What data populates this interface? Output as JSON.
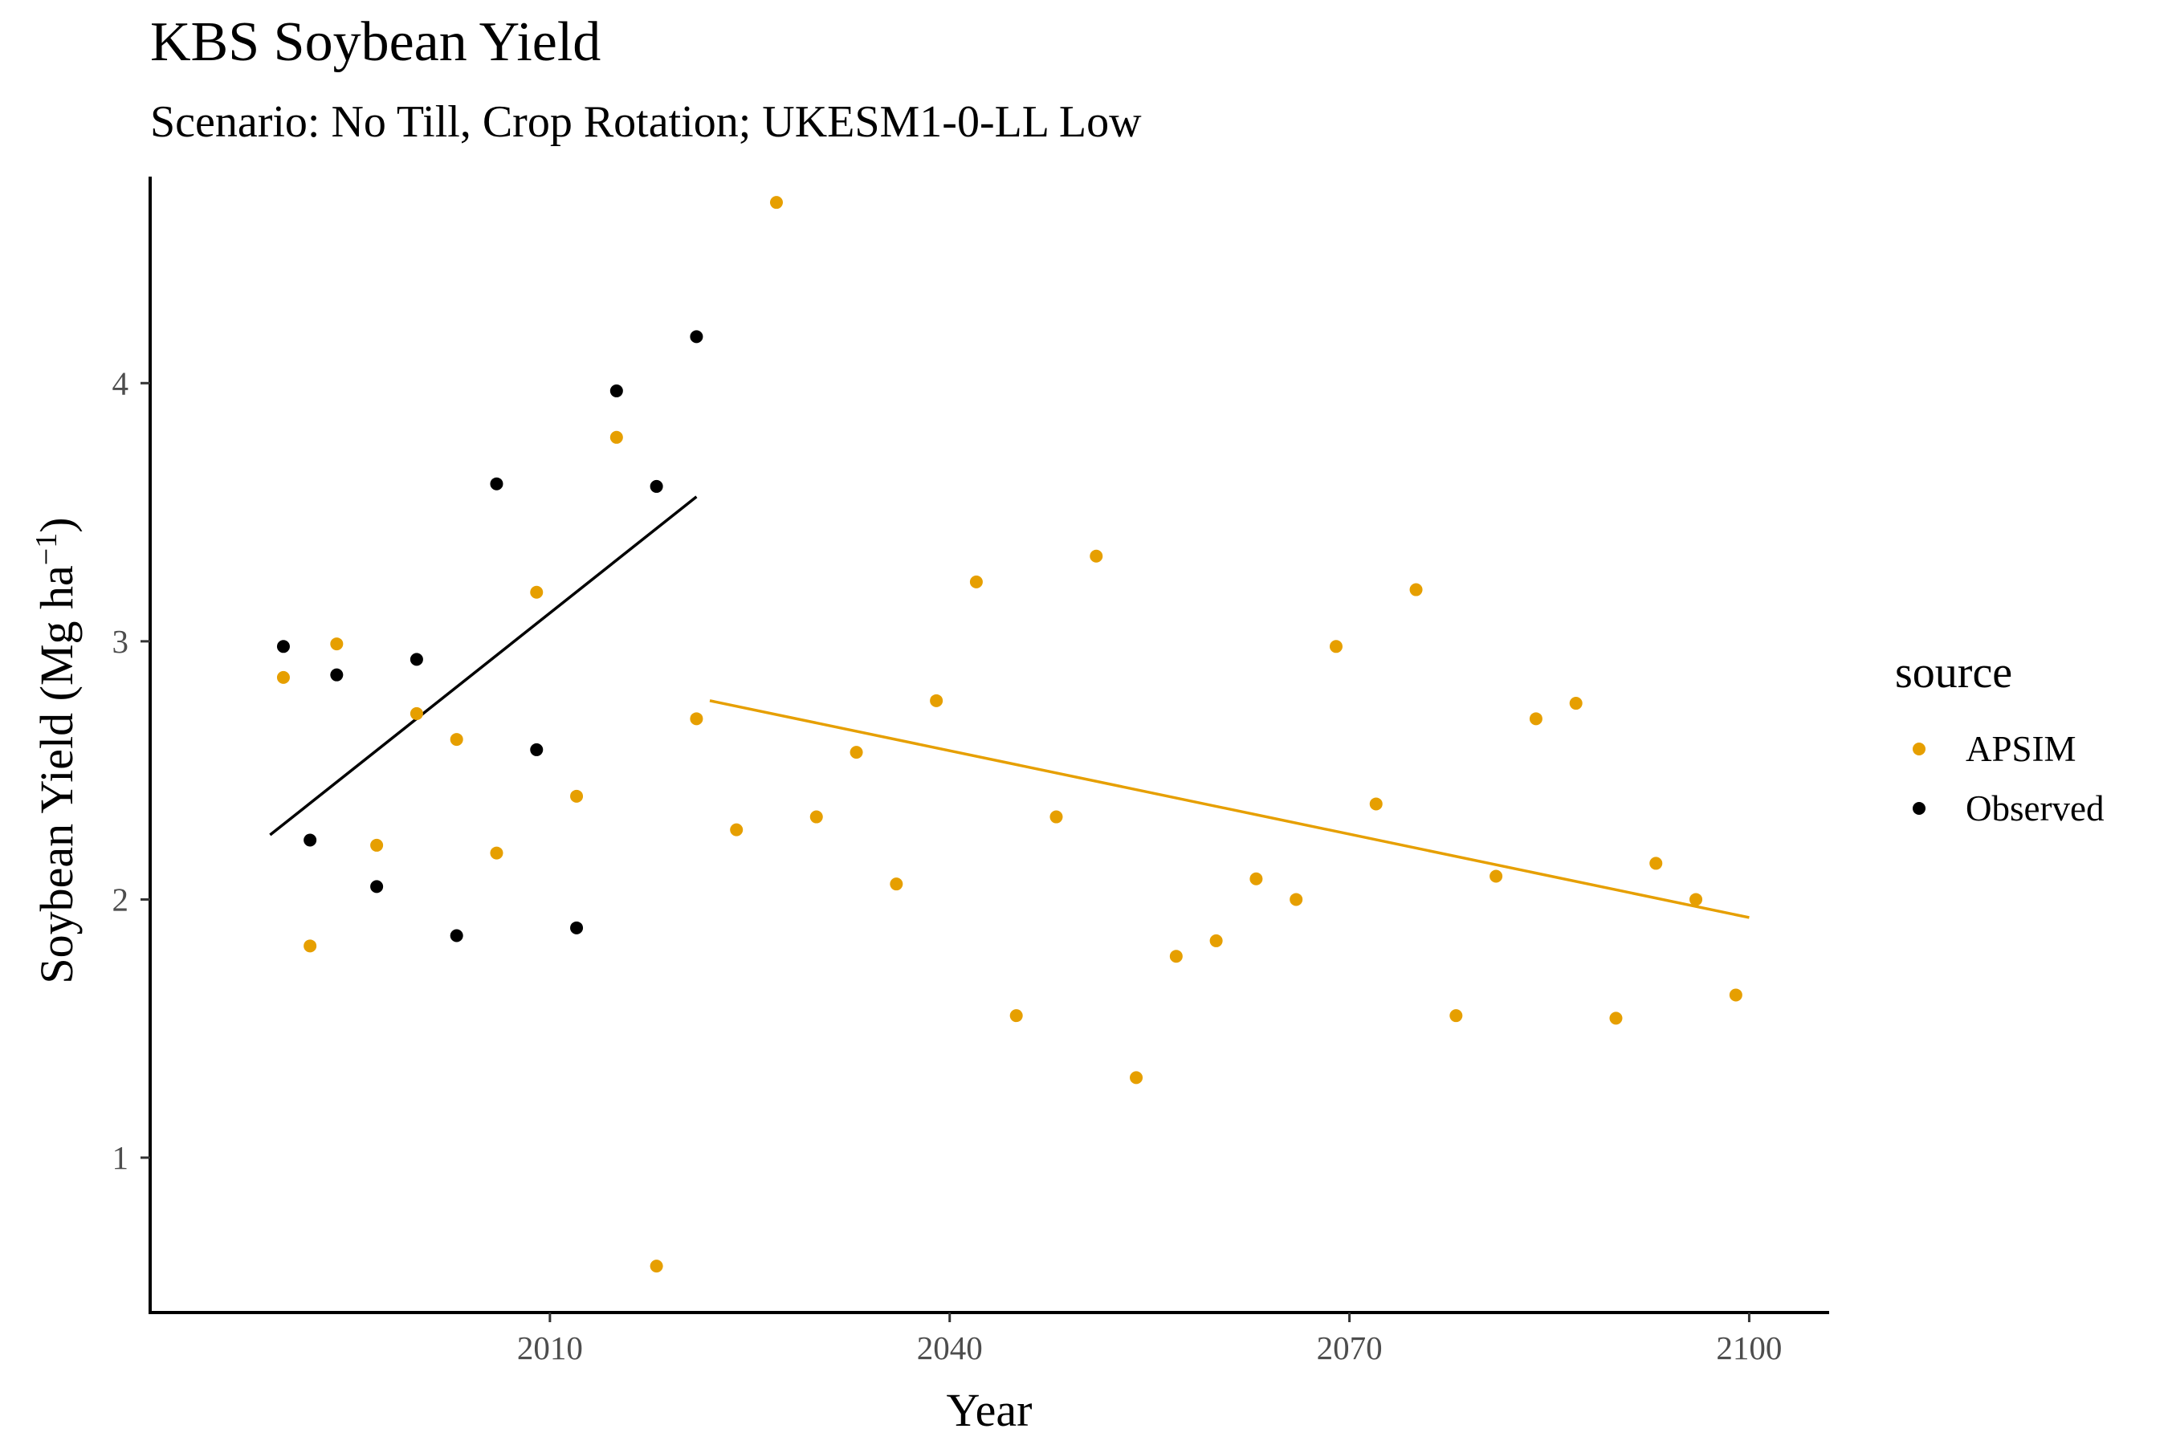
{
  "chart_data": {
    "type": "scatter",
    "title": "KBS Soybean Yield",
    "subtitle": "Scenario: No Till, Crop Rotation; UKESM1-0-LL Low",
    "xlabel": "Year",
    "ylabel": "Soybean Yield (Mg ha",
    "ylabel_sup": "−1",
    "ylabel_close": ")",
    "xlim": [
      1980,
      2106
    ],
    "ylim": [
      0.4,
      4.8
    ],
    "x_ticks": [
      2010,
      2040,
      2070,
      2100
    ],
    "x_tick_labels": [
      "2010",
      "2040",
      "2070",
      "2100"
    ],
    "y_ticks": [
      1,
      2,
      3,
      4
    ],
    "y_tick_labels": [
      "1",
      "2",
      "3",
      "4"
    ],
    "grid": false,
    "legend": {
      "title": "source",
      "position": "right"
    },
    "series": [
      {
        "name": "APSIM",
        "color": "#E69F00",
        "points": [
          [
            1990,
            2.86
          ],
          [
            1992,
            1.82
          ],
          [
            1994,
            2.99
          ],
          [
            1997,
            2.21
          ],
          [
            2000,
            2.72
          ],
          [
            2003,
            2.62
          ],
          [
            2006,
            2.18
          ],
          [
            2009,
            3.19
          ],
          [
            2012,
            2.4
          ],
          [
            2015,
            3.79
          ],
          [
            2018,
            0.58
          ],
          [
            2021,
            2.7
          ],
          [
            2024,
            2.27
          ],
          [
            2027,
            4.7
          ],
          [
            2030,
            2.32
          ],
          [
            2033,
            2.57
          ],
          [
            2036,
            2.06
          ],
          [
            2039,
            2.77
          ],
          [
            2042,
            3.23
          ],
          [
            2045,
            1.55
          ],
          [
            2048,
            2.32
          ],
          [
            2051,
            3.33
          ],
          [
            2054,
            1.31
          ],
          [
            2057,
            1.78
          ],
          [
            2060,
            1.84
          ],
          [
            2063,
            2.08
          ],
          [
            2066,
            2.0
          ],
          [
            2069,
            2.98
          ],
          [
            2072,
            2.37
          ],
          [
            2075,
            3.2
          ],
          [
            2078,
            1.55
          ],
          [
            2081,
            2.09
          ],
          [
            2084,
            2.7
          ],
          [
            2087,
            2.76
          ],
          [
            2090,
            1.54
          ],
          [
            2093,
            2.14
          ],
          [
            2096,
            2.0
          ],
          [
            2099,
            1.63
          ]
        ],
        "trend": [
          [
            2022,
            2.77
          ],
          [
            2100,
            1.93
          ]
        ]
      },
      {
        "name": "Observed",
        "color": "#000000",
        "points": [
          [
            1990,
            2.98
          ],
          [
            1992,
            2.23
          ],
          [
            1994,
            2.87
          ],
          [
            1997,
            2.05
          ],
          [
            2000,
            2.93
          ],
          [
            2003,
            1.86
          ],
          [
            2006,
            3.61
          ],
          [
            2009,
            2.58
          ],
          [
            2012,
            1.89
          ],
          [
            2015,
            3.97
          ],
          [
            2018,
            3.6
          ],
          [
            2021,
            4.18
          ]
        ],
        "trend": [
          [
            1989,
            2.25
          ],
          [
            2021,
            3.56
          ]
        ]
      }
    ]
  }
}
